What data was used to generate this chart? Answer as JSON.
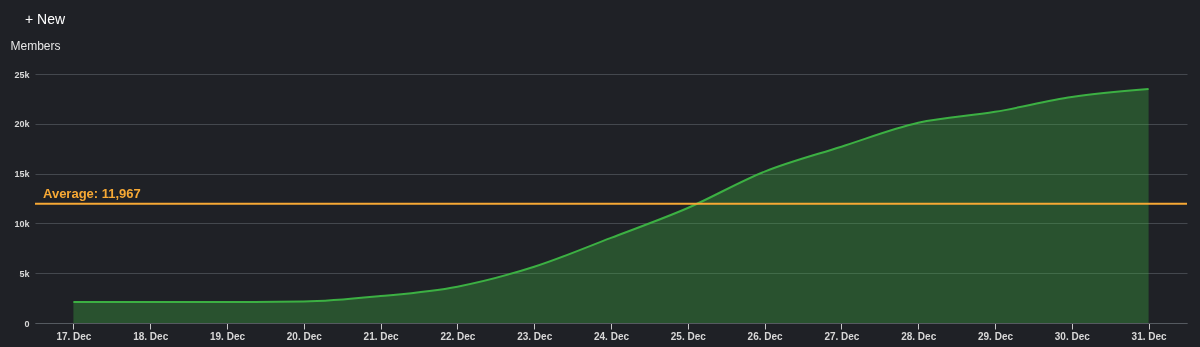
{
  "chart_data": {
    "type": "area",
    "ylabel": "Members",
    "annotations": [
      "+ New"
    ],
    "categories": [
      "17. Dec",
      "18. Dec",
      "19. Dec",
      "20. Dec",
      "21. Dec",
      "22. Dec",
      "23. Dec",
      "24. Dec",
      "25. Dec",
      "26. Dec",
      "27. Dec",
      "28. Dec",
      "29. Dec",
      "30. Dec",
      "31. Dec"
    ],
    "series": [
      {
        "color": "#3cb043",
        "values": [
          2100,
          2100,
          2100,
          2150,
          2700,
          3650,
          5650,
          8550,
          11550,
          15200,
          17700,
          20100,
          21200,
          22700,
          23500
        ]
      }
    ],
    "ylim": [
      0,
      25000
    ],
    "yticks": [
      0,
      {
        "value": 5000,
        "label": "5k"
      },
      {
        "value": 10000,
        "label": "10k"
      },
      {
        "value": 15000,
        "label": "15k"
      },
      {
        "value": 20000,
        "label": "20k"
      },
      {
        "value": 25000,
        "label": "25k"
      }
    ],
    "ref_lines": [
      {
        "axis": "y",
        "value": 11967,
        "label": "Average: 11,967",
        "color": "#f7a935"
      }
    ],
    "grid": "y"
  }
}
